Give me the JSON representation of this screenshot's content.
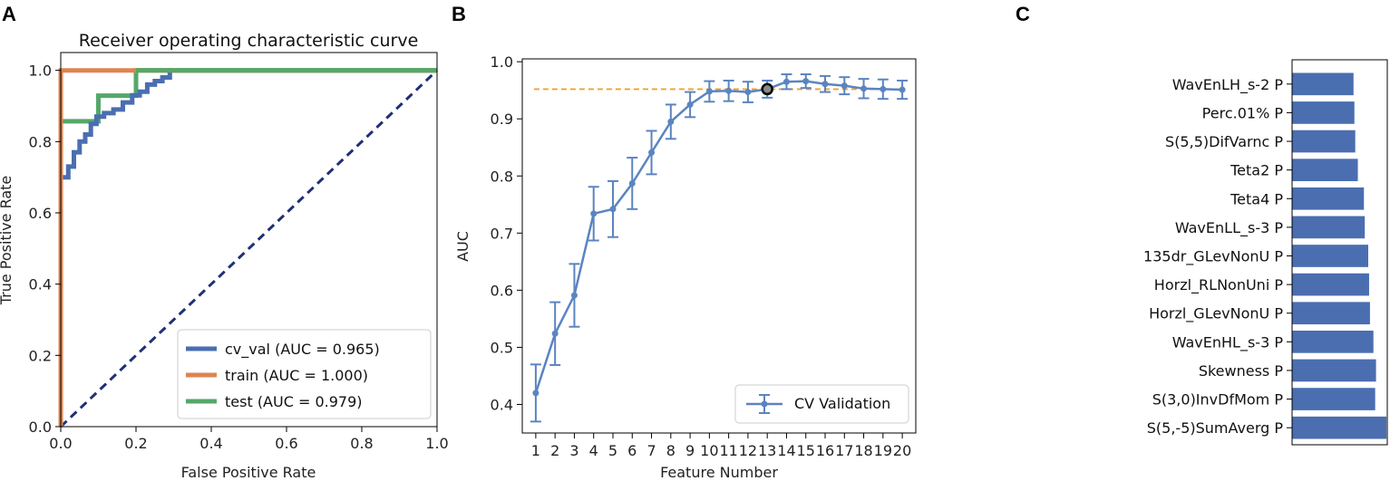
{
  "panel_labels": {
    "a": "A",
    "b": "B",
    "c": "C"
  },
  "colors": {
    "cv": "#4a6eb0",
    "train": "#dd8452",
    "test": "#55a868",
    "diag": "#1f2f78",
    "validation": "#5b84c0",
    "hline": "#f0a030",
    "bars": "#4a6eb0"
  },
  "chart_data": [
    {
      "type": "line",
      "title": "Receiver operating characteristic curve",
      "xlabel": "False Positive Rate",
      "ylabel": "True Positive Rate",
      "xlim": [
        0,
        1
      ],
      "ylim": [
        0,
        1.05
      ],
      "xticks": [
        "0.0",
        "0.2",
        "0.4",
        "0.6",
        "0.8",
        "1.0"
      ],
      "yticks": [
        "0.0",
        "0.2",
        "0.4",
        "0.6",
        "0.8",
        "1.0"
      ],
      "legend": [
        "cv_val (AUC = 0.965)",
        "train (AUC = 1.000)",
        "test (AUC = 0.979)"
      ],
      "legend_position": "lower-right",
      "series": [
        {
          "name": "cv_val (AUC = 0.965)",
          "points": [
            [
              0,
              0
            ],
            [
              0,
              0.7
            ],
            [
              0.02,
              0.7
            ],
            [
              0.02,
              0.73
            ],
            [
              0.035,
              0.73
            ],
            [
              0.035,
              0.77
            ],
            [
              0.05,
              0.77
            ],
            [
              0.05,
              0.8
            ],
            [
              0.065,
              0.8
            ],
            [
              0.065,
              0.82
            ],
            [
              0.08,
              0.82
            ],
            [
              0.08,
              0.85
            ],
            [
              0.095,
              0.85
            ],
            [
              0.095,
              0.87
            ],
            [
              0.115,
              0.87
            ],
            [
              0.115,
              0.88
            ],
            [
              0.14,
              0.88
            ],
            [
              0.14,
              0.89
            ],
            [
              0.165,
              0.89
            ],
            [
              0.165,
              0.91
            ],
            [
              0.19,
              0.91
            ],
            [
              0.19,
              0.93
            ],
            [
              0.21,
              0.93
            ],
            [
              0.21,
              0.94
            ],
            [
              0.23,
              0.94
            ],
            [
              0.23,
              0.96
            ],
            [
              0.25,
              0.96
            ],
            [
              0.25,
              0.97
            ],
            [
              0.27,
              0.97
            ],
            [
              0.27,
              0.98
            ],
            [
              0.29,
              0.98
            ],
            [
              0.29,
              1.0
            ],
            [
              1.0,
              1.0
            ]
          ]
        },
        {
          "name": "train (AUC = 1.000)",
          "points": [
            [
              0,
              0
            ],
            [
              0,
              1.0
            ],
            [
              1.0,
              1.0
            ]
          ]
        },
        {
          "name": "test (AUC = 0.979)",
          "points": [
            [
              0,
              0
            ],
            [
              0,
              0.857
            ],
            [
              0.1,
              0.857
            ],
            [
              0.1,
              0.929
            ],
            [
              0.2,
              0.929
            ],
            [
              0.2,
              1.0
            ],
            [
              1.0,
              1.0
            ]
          ]
        },
        {
          "name": "chance",
          "points": [
            [
              0,
              0
            ],
            [
              1,
              1
            ]
          ]
        }
      ]
    },
    {
      "type": "line",
      "xlabel": "Feature Number",
      "ylabel": "AUC",
      "xlim": [
        0.3,
        20.7
      ],
      "ylim": [
        0.35,
        1.005
      ],
      "yticks": [
        "0.4",
        "0.5",
        "0.6",
        "0.7",
        "0.8",
        "0.9",
        "1.0"
      ],
      "categories": [
        "1",
        "2",
        "3",
        "4",
        "5",
        "6",
        "7",
        "8",
        "9",
        "10",
        "11",
        "12",
        "13",
        "14",
        "15",
        "16",
        "17",
        "18",
        "19",
        "20"
      ],
      "legend": [
        "CV Validation"
      ],
      "legend_position": "lower-right",
      "series": [
        {
          "name": "CV Validation",
          "values": [
            0.42,
            0.524,
            0.591,
            0.734,
            0.742,
            0.787,
            0.841,
            0.895,
            0.925,
            0.948,
            0.949,
            0.947,
            0.952,
            0.965,
            0.966,
            0.961,
            0.958,
            0.953,
            0.952,
            0.951
          ],
          "errors": [
            0.05,
            0.055,
            0.055,
            0.047,
            0.049,
            0.045,
            0.038,
            0.03,
            0.022,
            0.018,
            0.018,
            0.018,
            0.015,
            0.013,
            0.012,
            0.014,
            0.015,
            0.017,
            0.017,
            0.016
          ]
        }
      ],
      "reference_line": 0.952,
      "highlight_feature": 13
    },
    {
      "type": "bar",
      "orientation": "horizontal",
      "categories": [
        "WavEnLH_s-2 P",
        "Perc.01% P",
        "S(5,5)DifVarnc P",
        "Teta2 P",
        "Teta4 P",
        "WavEnLL_s-3 P",
        "135dr_GLevNonU P",
        "Horzl_RLNonUni P",
        "Horzl_GLevNonU P",
        "WavEnHL_s-3 P",
        "Skewness P",
        "S(3,0)InvDfMom P",
        "S(5,-5)SumAverg P"
      ],
      "values": [
        0.071,
        0.072,
        0.073,
        0.076,
        0.083,
        0.084,
        0.088,
        0.089,
        0.09,
        0.094,
        0.097,
        0.096,
        0.109
      ],
      "xlim": [
        0,
        0.11
      ]
    }
  ]
}
